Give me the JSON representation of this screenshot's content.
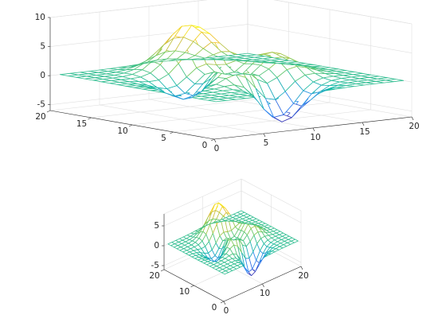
{
  "chart_data": [
    {
      "type": "mesh",
      "title": "",
      "xlabel": "",
      "ylabel": "",
      "zlabel": "",
      "xlim": [
        0,
        20
      ],
      "ylim": [
        0,
        20
      ],
      "zlim": [
        -6,
        10
      ],
      "x_ticks": [
        0,
        5,
        10,
        15,
        20
      ],
      "y_ticks": [
        0,
        5,
        10,
        15,
        20
      ],
      "z_ticks": [
        -5,
        0,
        5,
        10
      ],
      "x_tick_labels": [
        "0",
        "5",
        "10",
        "15",
        "20"
      ],
      "y_tick_labels": [
        "0",
        "5",
        "10",
        "15",
        "20"
      ],
      "z_tick_labels": [
        "-5",
        "0",
        "5",
        "10"
      ],
      "grid": true,
      "view": {
        "azimuth": -37.5,
        "elevation": 30
      },
      "surface": "peaks(20) sampled on a 20x20 integer grid, z range about -6.5 to 8.1",
      "colormap": [
        "#3e26a8",
        "#2e86f5",
        "#14b9a9",
        "#81cc59",
        "#eeba30",
        "#f9fb15"
      ]
    },
    {
      "type": "mesh",
      "title": "",
      "xlabel": "",
      "ylabel": "",
      "zlabel": "",
      "xlim": [
        0,
        20
      ],
      "ylim": [
        0,
        20
      ],
      "zlim": [
        -6,
        8
      ],
      "x_ticks": [
        0,
        10,
        20
      ],
      "y_ticks": [
        0,
        10,
        20
      ],
      "z_ticks": [
        -5,
        0,
        5
      ],
      "x_tick_labels": [
        "0",
        "10",
        "20"
      ],
      "y_tick_labels": [
        "0",
        "10",
        "20"
      ],
      "z_tick_labels": [
        "-5",
        "0",
        "5"
      ],
      "grid": true,
      "view": {
        "azimuth": -37.5,
        "elevation": 30
      },
      "surface": "peaks(20) sampled on a 20x20 integer grid, z range about -6.5 to 8.1",
      "colormap": [
        "#3e26a8",
        "#2e86f5",
        "#14b9a9",
        "#81cc59",
        "#eeba30",
        "#f9fb15"
      ]
    }
  ]
}
